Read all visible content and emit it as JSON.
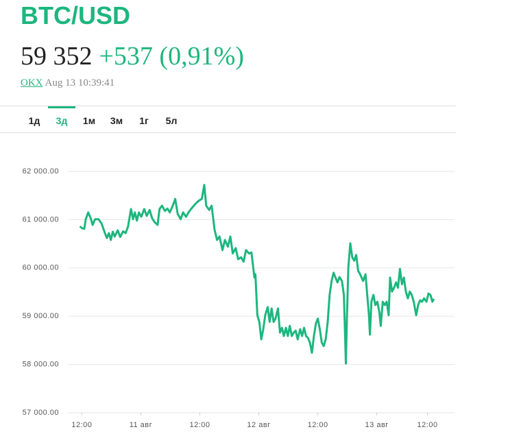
{
  "header": {
    "title": "BTC/USD",
    "price": "59 352",
    "change": "+537 (0,91%)",
    "source": "OKX",
    "timestamp": "Aug 13 10:39:41"
  },
  "tabs": [
    "1д",
    "3д",
    "1м",
    "3м",
    "1г",
    "5л"
  ],
  "active_tab": 1,
  "chart_data": {
    "type": "line",
    "grid": true,
    "xlim": [
      9.3,
      87.8
    ],
    "ylim": [
      57000,
      62000
    ],
    "yticks": [
      {
        "value": 57000,
        "label": "57 000.00"
      },
      {
        "value": 58000,
        "label": "58 000.00"
      },
      {
        "value": 59000,
        "label": "59 000.00"
      },
      {
        "value": 60000,
        "label": "60 000.00"
      },
      {
        "value": 61000,
        "label": "61 000.00"
      },
      {
        "value": 62000,
        "label": "62 000.00"
      }
    ],
    "xticks": [
      {
        "value": 12,
        "label": "12:00"
      },
      {
        "value": 24,
        "label": "11 авг"
      },
      {
        "value": 36,
        "label": "12:00"
      },
      {
        "value": 48,
        "label": "12 авг"
      },
      {
        "value": 60,
        "label": "12:00"
      },
      {
        "value": 72,
        "label": "13 авг"
      },
      {
        "value": 82.3,
        "label": "12:00"
      }
    ],
    "series": [
      {
        "name": "BTC/USD",
        "color": "#1db67e",
        "x": [
          11.6,
          12.1,
          12.5,
          12.8,
          13.3,
          13.8,
          14.2,
          14.7,
          15.4,
          16.0,
          16.7,
          17.1,
          17.5,
          17.9,
          18.3,
          18.7,
          19.3,
          19.8,
          20.4,
          20.9,
          21.4,
          22.0,
          22.4,
          22.8,
          23.2,
          23.6,
          24.1,
          24.7,
          25.2,
          25.8,
          26.3,
          26.8,
          27.4,
          27.8,
          28.3,
          28.9,
          29.4,
          29.9,
          30.5,
          31.0,
          31.5,
          32.1,
          32.6,
          33.2,
          33.7,
          34.2,
          34.8,
          35.3,
          35.9,
          36.4,
          36.9,
          37.3,
          37.9,
          38.4,
          39.0,
          39.5,
          40.0,
          40.6,
          41.1,
          41.7,
          42.2,
          42.7,
          43.3,
          43.8,
          44.4,
          44.9,
          45.4,
          46.0,
          46.5,
          47.1,
          47.3,
          47.7,
          48.1,
          48.5,
          48.9,
          49.3,
          49.8,
          50.2,
          50.6,
          51.0,
          51.4,
          51.9,
          52.3,
          52.7,
          53.1,
          53.5,
          53.9,
          54.3,
          54.7,
          55.1,
          55.5,
          55.9,
          56.4,
          56.8,
          57.2,
          57.6,
          58.0,
          58.4,
          58.8,
          59.2,
          59.6,
          60.0,
          60.4,
          60.8,
          61.2,
          61.6,
          62.0,
          62.4,
          62.8,
          63.2,
          63.6,
          64.0,
          64.4,
          64.9,
          65.3,
          65.5,
          65.7,
          65.9,
          66.2,
          66.6,
          67.0,
          67.4,
          67.8,
          68.2,
          68.6,
          69.2,
          69.7,
          70.1,
          70.4,
          70.6,
          70.9,
          71.3,
          71.7,
          72.1,
          72.5,
          72.8,
          73.2,
          73.6,
          74.0,
          74.4,
          74.7,
          75.1,
          75.5,
          75.9,
          76.3,
          76.7,
          77.1,
          77.5,
          77.9,
          78.3,
          78.7,
          79.1,
          79.5,
          80.0,
          80.4,
          80.8,
          81.2,
          81.6,
          82.1,
          82.5,
          82.9,
          83.3,
          83.6
        ],
        "values": [
          60860,
          60820,
          60810,
          61010,
          61150,
          61030,
          60890,
          61010,
          61010,
          60920,
          60720,
          60620,
          60720,
          60580,
          60750,
          60650,
          60780,
          60640,
          60760,
          60720,
          60860,
          61220,
          61010,
          61150,
          60980,
          61150,
          61060,
          61220,
          61080,
          61200,
          61030,
          60950,
          60890,
          61220,
          61290,
          61180,
          61230,
          61150,
          61290,
          61430,
          61120,
          61010,
          61150,
          61060,
          61150,
          61220,
          61290,
          61350,
          61400,
          61430,
          61720,
          61290,
          61200,
          61290,
          60790,
          60580,
          60650,
          60370,
          60580,
          60440,
          60650,
          60300,
          60410,
          60180,
          60220,
          60130,
          60370,
          60300,
          60320,
          59800,
          59870,
          59020,
          58880,
          58520,
          58730,
          59020,
          59190,
          58880,
          59160,
          58880,
          58950,
          59160,
          58660,
          58760,
          58590,
          58760,
          58590,
          58800,
          58590,
          58660,
          58700,
          58520,
          58730,
          58590,
          58760,
          58590,
          58550,
          58450,
          58240,
          58590,
          58850,
          58950,
          58730,
          58450,
          58380,
          58520,
          58880,
          59440,
          59730,
          59900,
          59800,
          59700,
          59810,
          59730,
          59440,
          58730,
          58020,
          58880,
          60010,
          60510,
          60220,
          60150,
          60270,
          59940,
          59870,
          59730,
          59870,
          59370,
          59020,
          58620,
          59300,
          59440,
          59230,
          59300,
          59090,
          58800,
          59300,
          59230,
          59300,
          59020,
          59800,
          59510,
          59590,
          59700,
          59590,
          59980,
          59660,
          59800,
          59510,
          59370,
          59510,
          59440,
          59300,
          59020,
          59230,
          59330,
          59300,
          59370,
          59300,
          59470,
          59440,
          59300,
          59360
        ]
      }
    ]
  }
}
